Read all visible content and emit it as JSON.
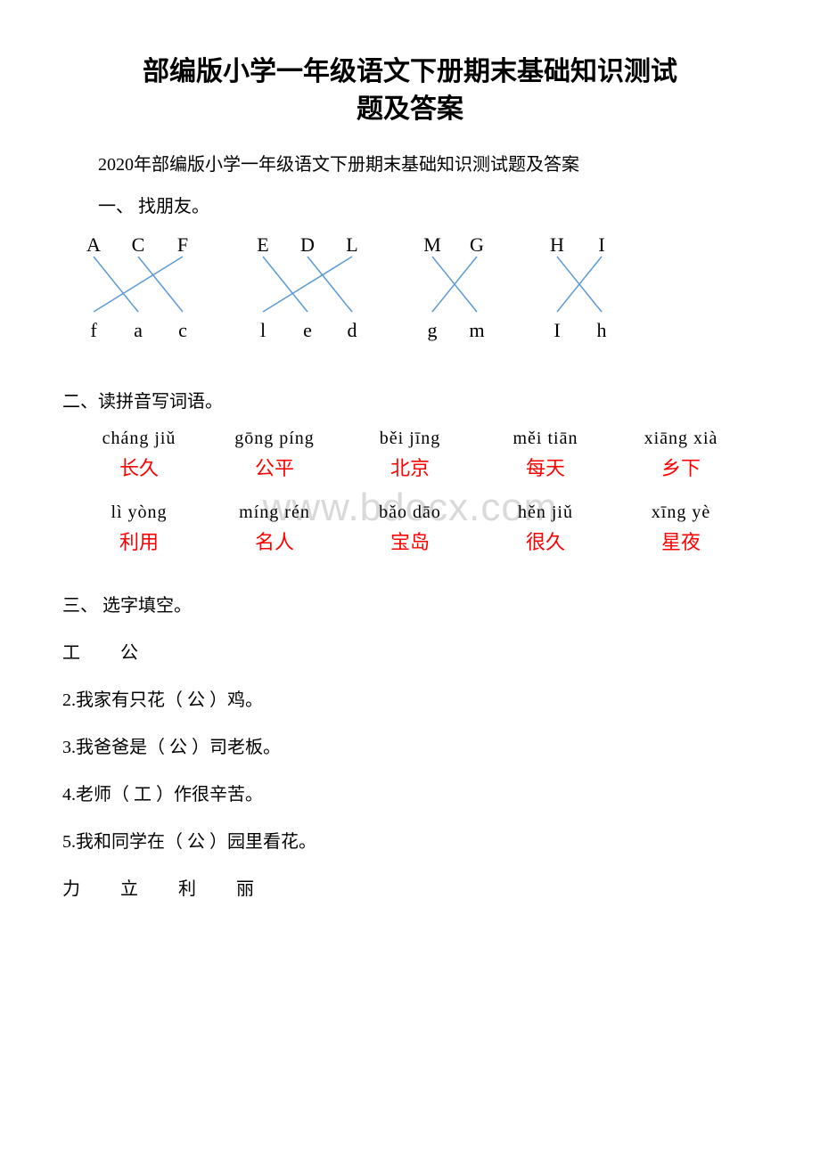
{
  "title_line1": "部编版小学一年级语文下册期末基础知识测试",
  "title_line2": "题及答案",
  "subtitle": "2020年部编版小学一年级语文下册期末基础知识测试题及答案",
  "sec1_label": "一、 找朋友。",
  "letter_groups": [
    {
      "top": [
        "A",
        "C",
        "F"
      ],
      "bottom": [
        "f",
        "a",
        "c"
      ],
      "lines": [
        [
          0,
          1
        ],
        [
          1,
          2
        ],
        [
          2,
          0
        ]
      ]
    },
    {
      "top": [
        "E",
        "D",
        "L"
      ],
      "bottom": [
        "l",
        "e",
        "d"
      ],
      "lines": [
        [
          0,
          1
        ],
        [
          1,
          2
        ],
        [
          2,
          0
        ]
      ]
    },
    {
      "top": [
        "M",
        "G"
      ],
      "bottom": [
        "g",
        "m"
      ],
      "lines": [
        [
          0,
          1
        ],
        [
          1,
          0
        ]
      ]
    },
    {
      "top": [
        "H",
        "I"
      ],
      "bottom": [
        "I",
        "h"
      ],
      "lines": [
        [
          0,
          1
        ],
        [
          1,
          0
        ]
      ]
    }
  ],
  "sec2_label": "二、读拼音写词语。",
  "pinyin_items": [
    {
      "py": "cháng jiǔ",
      "ans": "长久"
    },
    {
      "py": "gōng píng",
      "ans": "公平"
    },
    {
      "py": "běi jīng",
      "ans": "北京"
    },
    {
      "py": "měi tiān",
      "ans": "每天"
    },
    {
      "py": "xiāng xià",
      "ans": "乡下"
    },
    {
      "py": "lì  yòng",
      "ans": "利用"
    },
    {
      "py": "míng rén",
      "ans": "名人"
    },
    {
      "py": "bǎo  dāo",
      "ans": "宝岛"
    },
    {
      "py": "hěn jiǔ",
      "ans": "很久"
    },
    {
      "py": "xīng  yè",
      "ans": "星夜"
    }
  ],
  "watermark": "www.bdocx.com",
  "sec3_label": "三、 选字填空。",
  "pair1_a": "工",
  "pair1_b": "公",
  "q2": "2.我家有只花（   公   ）鸡。",
  "q3": "3.我爸爸是（   公  ）司老板。",
  "q4": "4.老师（   工   ）作很辛苦。",
  "q5": "5.我和同学在（  公   ）园里看花。",
  "pair2_a": "力",
  "pair2_b": "立",
  "pair2_c": "利",
  "pair2_d": "丽",
  "colors": {
    "line": "#5b9bd5",
    "answer": "#ff0000",
    "watermark": "#d9d9d9",
    "text": "#000000",
    "bg": "#ffffff"
  }
}
